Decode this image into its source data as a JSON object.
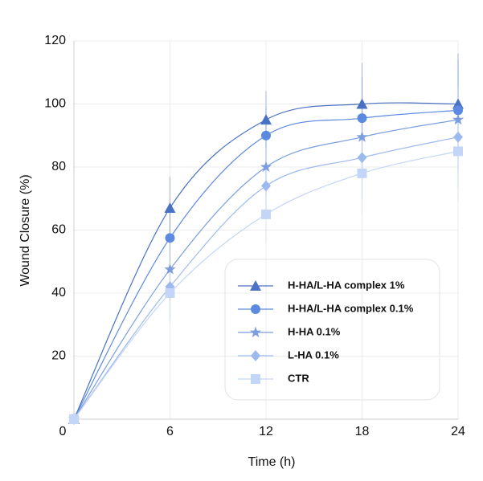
{
  "chart_data": {
    "type": "line",
    "x_label": "Time (h)",
    "y_label": "Wound Closure (%)",
    "x": [
      0,
      6,
      12,
      18,
      24
    ],
    "xlim": [
      0,
      24
    ],
    "xticks": [
      0,
      6,
      12,
      18,
      24
    ],
    "ylim": [
      0,
      120
    ],
    "yticks": [
      20,
      40,
      60,
      80,
      100,
      120
    ],
    "grid": true,
    "series": [
      {
        "name": "H-HA/L-HA complex 1%",
        "color": "#4a72c4",
        "marker": "triangle",
        "values": [
          0,
          67,
          95,
          100,
          100
        ],
        "errors": [
          0,
          10,
          9,
          13,
          16
        ]
      },
      {
        "name": "H-HA/L-HA complex 0.1%",
        "color": "#5b8ae0",
        "marker": "circle",
        "values": [
          0,
          57.5,
          90,
          95.5,
          98
        ],
        "errors": [
          0,
          10,
          9,
          13,
          16
        ]
      },
      {
        "name": "H-HA 0.1%",
        "color": "#7c9edf",
        "marker": "star",
        "values": [
          0,
          47.5,
          80,
          89.5,
          95
        ],
        "errors": [
          0,
          10,
          9,
          13,
          16
        ]
      },
      {
        "name": "L-HA 0.1%",
        "color": "#9dbaf0",
        "marker": "diamond",
        "values": [
          0,
          42,
          74,
          83,
          89.5
        ],
        "errors": [
          0,
          10,
          9,
          13,
          16
        ]
      },
      {
        "name": "CTR",
        "color": "#c3d6f8",
        "marker": "square",
        "values": [
          0,
          40,
          65,
          78,
          85
        ],
        "errors": [
          0,
          10,
          9,
          13,
          16
        ]
      }
    ]
  }
}
